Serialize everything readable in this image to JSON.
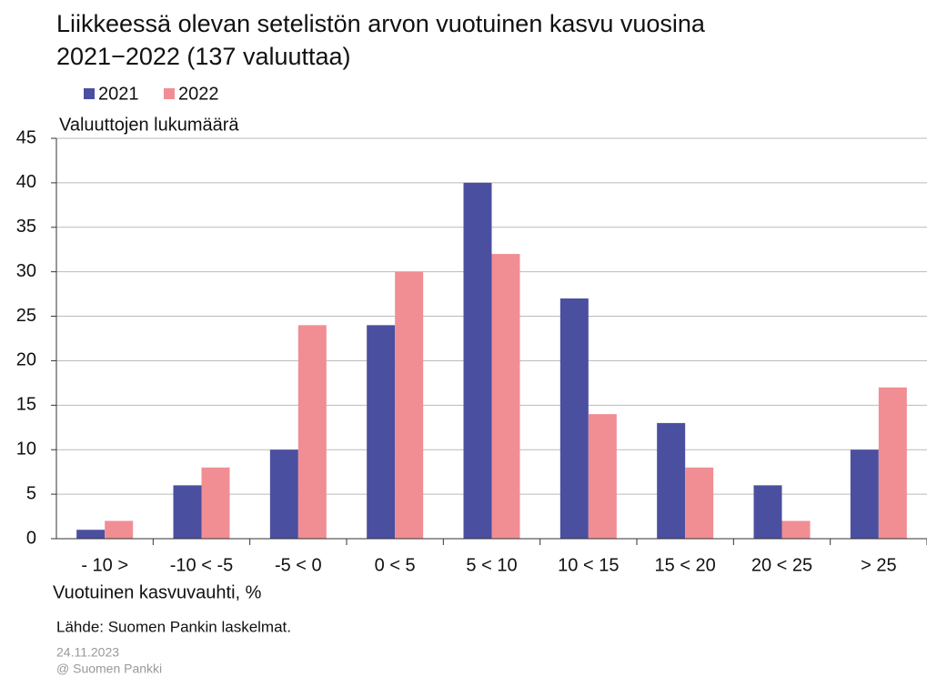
{
  "chart_data": {
    "type": "bar",
    "title": [
      "Liikkeessä olevan setelistön arvon vuotuinen kasvu vuosina",
      "2021−2022 (137 valuuttaa)"
    ],
    "y_label": "Valuuttojen lukumäärä",
    "x_label": "Vuotuinen kasvuvauhti, %",
    "source": "Lähde: Suomen Pankin laskelmat.",
    "date": "24.11.2023",
    "copyright": "@ Suomen Pankki",
    "categories": [
      "- 10 >",
      "-10 < -5",
      "-5 < 0",
      "0 < 5",
      "5 < 10",
      "10 < 15",
      "15 < 20",
      "20 < 25",
      "> 25"
    ],
    "series": [
      {
        "name": "2021",
        "color": "#4b4fa0",
        "values": [
          1,
          6,
          10,
          24,
          40,
          27,
          13,
          6,
          10
        ]
      },
      {
        "name": "2022",
        "color": "#f08e94",
        "values": [
          2,
          8,
          24,
          30,
          32,
          14,
          8,
          2,
          17
        ]
      }
    ],
    "ylim": [
      0,
      45
    ],
    "yticks": [
      0,
      5,
      10,
      15,
      20,
      25,
      30,
      35,
      40,
      45
    ],
    "grid": true,
    "legend": "top"
  }
}
